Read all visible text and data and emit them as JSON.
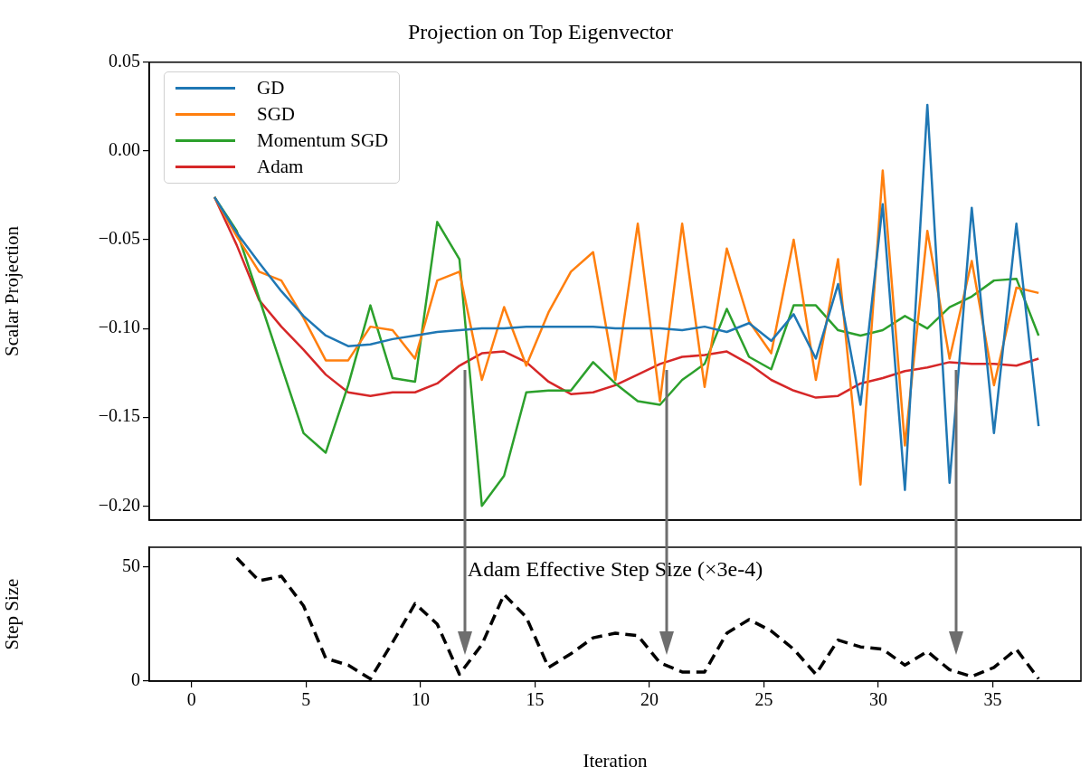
{
  "chart_data": [
    {
      "type": "line",
      "title": "Projection on Top Eigenvector",
      "ylabel": "Scalar Projection",
      "legend": "top left",
      "tick_labels": "y",
      "grid": false,
      "marker": "none",
      "x": [
        1.0,
        1.97,
        2.95,
        3.92,
        4.89,
        5.86,
        6.84,
        7.81,
        8.78,
        9.76,
        10.73,
        11.7,
        12.68,
        13.65,
        14.62,
        15.59,
        16.57,
        17.54,
        18.51,
        19.49,
        20.46,
        21.43,
        22.41,
        23.38,
        24.35,
        25.32,
        26.3,
        27.27,
        28.24,
        29.22,
        30.19,
        31.16,
        32.14,
        33.11,
        34.08,
        35.05,
        36.03,
        37.0
      ],
      "xlim": [
        -1.85,
        38.85
      ],
      "ylim": [
        -0.208,
        0.05
      ],
      "yticks": [
        {
          "value": -0.2,
          "label": "−0.20"
        },
        {
          "value": -0.15,
          "label": "−0.15"
        },
        {
          "value": -0.1,
          "label": "−0.10"
        },
        {
          "value": -0.05,
          "label": "−0.05"
        },
        {
          "value": 0,
          "label": "0.00"
        },
        {
          "value": 0.05,
          "label": "0.05"
        }
      ],
      "series": [
        {
          "name": "GD",
          "color": "#1f77b4",
          "values": [
            -0.026,
            -0.046,
            -0.063,
            -0.079,
            -0.093,
            -0.104,
            -0.11,
            -0.109,
            -0.106,
            -0.104,
            -0.102,
            -0.101,
            -0.1,
            -0.1,
            -0.099,
            -0.099,
            -0.099,
            -0.099,
            -0.1,
            -0.1,
            -0.1,
            -0.101,
            -0.099,
            -0.102,
            -0.097,
            -0.107,
            -0.092,
            -0.117,
            -0.075,
            -0.143,
            -0.03,
            -0.191,
            0.026,
            -0.187,
            -0.032,
            -0.159,
            -0.041,
            -0.155
          ]
        },
        {
          "name": "SGD",
          "color": "#ff7f0e",
          "values": [
            -0.026,
            -0.048,
            -0.068,
            -0.073,
            -0.094,
            -0.118,
            -0.118,
            -0.099,
            -0.101,
            -0.117,
            -0.073,
            -0.068,
            -0.129,
            -0.088,
            -0.121,
            -0.091,
            -0.068,
            -0.057,
            -0.129,
            -0.041,
            -0.141,
            -0.041,
            -0.133,
            -0.055,
            -0.096,
            -0.114,
            -0.05,
            -0.129,
            -0.061,
            -0.188,
            -0.011,
            -0.166,
            -0.045,
            -0.117,
            -0.062,
            -0.132,
            -0.077,
            -0.08
          ]
        },
        {
          "name": "Momentum SGD",
          "color": "#2ca02c",
          "values": [
            -0.026,
            -0.045,
            -0.083,
            -0.121,
            -0.159,
            -0.17,
            -0.132,
            -0.087,
            -0.128,
            -0.13,
            -0.04,
            -0.061,
            -0.2,
            -0.183,
            -0.136,
            -0.135,
            -0.135,
            -0.119,
            -0.131,
            -0.141,
            -0.143,
            -0.129,
            -0.12,
            -0.089,
            -0.116,
            -0.123,
            -0.087,
            -0.087,
            -0.101,
            -0.104,
            -0.101,
            -0.093,
            -0.1,
            -0.088,
            -0.082,
            -0.073,
            -0.072,
            -0.104
          ]
        },
        {
          "name": "Adam",
          "color": "#d62728",
          "values": [
            -0.026,
            -0.053,
            -0.084,
            -0.099,
            -0.112,
            -0.126,
            -0.136,
            -0.138,
            -0.136,
            -0.136,
            -0.131,
            -0.121,
            -0.114,
            -0.113,
            -0.119,
            -0.13,
            -0.137,
            -0.136,
            -0.132,
            -0.126,
            -0.12,
            -0.116,
            -0.115,
            -0.113,
            -0.12,
            -0.129,
            -0.135,
            -0.139,
            -0.138,
            -0.131,
            -0.128,
            -0.124,
            -0.122,
            -0.119,
            -0.12,
            -0.12,
            -0.121,
            -0.117
          ]
        }
      ]
    },
    {
      "type": "line",
      "title": "Adam Effective Step Size (×3e-4)",
      "xlabel": "Iteration",
      "ylabel": "Step Size",
      "grid": false,
      "marker": "none",
      "x": [
        1.97,
        2.95,
        3.92,
        4.89,
        5.86,
        6.84,
        7.81,
        8.78,
        9.76,
        10.73,
        11.7,
        12.68,
        13.65,
        14.62,
        15.59,
        16.57,
        17.54,
        18.51,
        19.49,
        20.46,
        21.43,
        22.41,
        23.38,
        24.35,
        25.32,
        26.3,
        27.27,
        28.24,
        29.22,
        30.19,
        31.16,
        32.14,
        33.11,
        34.08,
        35.05,
        36.03,
        37.0
      ],
      "xlim": [
        -1.85,
        38.85
      ],
      "ylim": [
        0,
        58.7
      ],
      "xticks": [
        0,
        5,
        10,
        15,
        20,
        25,
        30,
        35
      ],
      "yticks": [
        0,
        50
      ],
      "series": [
        {
          "color": "#000000",
          "line_style": "dashed",
          "values": [
            54,
            44,
            46,
            33,
            10,
            7,
            1,
            17,
            34,
            25,
            3,
            16,
            38,
            28,
            6,
            12,
            19,
            21,
            20,
            8,
            4,
            4,
            21,
            27,
            22,
            14,
            3,
            18,
            15,
            14,
            7,
            13,
            5,
            2,
            6,
            14,
            1
          ]
        }
      ]
    }
  ]
}
